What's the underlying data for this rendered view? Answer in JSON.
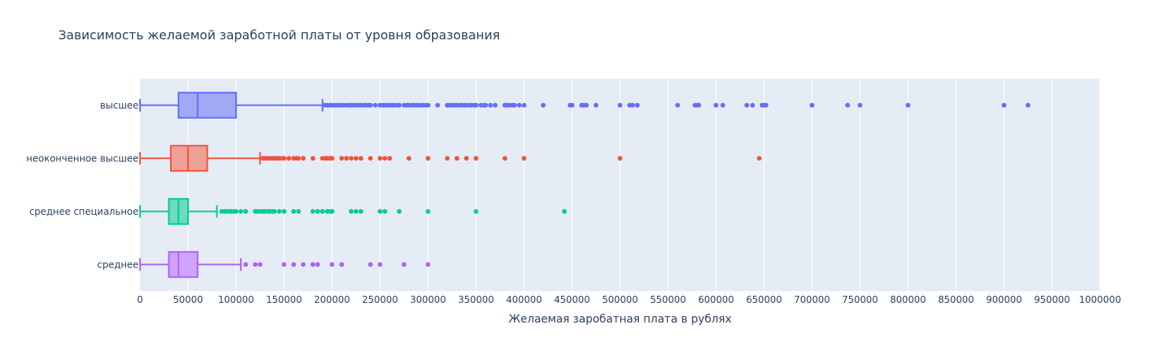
{
  "chart_data": {
    "type": "box",
    "orientation": "horizontal",
    "title": "Зависимость желаемой заработной платы от уровня образования",
    "xlabel": "Желаемая заробатная плата в рублях",
    "ylabel": "",
    "xlim": [
      0,
      1000000
    ],
    "x_ticks": [
      0,
      50000,
      100000,
      150000,
      200000,
      250000,
      300000,
      350000,
      400000,
      450000,
      500000,
      550000,
      600000,
      650000,
      700000,
      750000,
      800000,
      850000,
      900000,
      950000,
      1000000
    ],
    "x_tick_labels": [
      "0",
      "50000",
      "100000",
      "150000",
      "200000",
      "250000",
      "300000",
      "350000",
      "400000",
      "450000",
      "500000",
      "550000",
      "600000",
      "650000",
      "700000",
      "750000",
      "800000",
      "850000",
      "900000",
      "950000",
      "1000000"
    ],
    "grid": true,
    "legend": "none",
    "background": "#e5ecf6",
    "categories": [
      "высшее",
      "неоконченное высшее",
      "среднее специальное",
      "среднее"
    ],
    "series": [
      {
        "category": "высшее",
        "color": "#636efa",
        "fill": "#a1a8f6",
        "min": 0,
        "q1": 40000,
        "median": 60000,
        "q3": 100000,
        "upper_fence": 190000,
        "outliers": [
          192000,
          195000,
          198000,
          200000,
          203000,
          205000,
          208000,
          210000,
          212000,
          215000,
          218000,
          220000,
          223000,
          225000,
          228000,
          230000,
          233000,
          235000,
          238000,
          240000,
          245000,
          250000,
          253000,
          255000,
          258000,
          260000,
          263000,
          265000,
          268000,
          270000,
          275000,
          278000,
          280000,
          283000,
          285000,
          288000,
          290000,
          293000,
          295000,
          298000,
          300000,
          310000,
          320000,
          322000,
          325000,
          328000,
          330000,
          333000,
          335000,
          338000,
          340000,
          343000,
          345000,
          348000,
          350000,
          355000,
          358000,
          360000,
          365000,
          370000,
          380000,
          382000,
          385000,
          388000,
          390000,
          395000,
          400000,
          420000,
          448000,
          450000,
          460000,
          462000,
          465000,
          475000,
          500000,
          510000,
          513000,
          518000,
          560000,
          578000,
          580000,
          582000,
          600000,
          607000,
          632000,
          638000,
          648000,
          650000,
          652000,
          700000,
          737000,
          750000,
          800000,
          900000,
          925000
        ]
      },
      {
        "category": "неоконченное высшее",
        "color": "#ef553b",
        "fill": "#eda095",
        "min": 0,
        "q1": 32000,
        "median": 50000,
        "q3": 70000,
        "upper_fence": 125000,
        "outliers": [
          128000,
          130000,
          133000,
          135000,
          138000,
          140000,
          143000,
          145000,
          148000,
          150000,
          155000,
          160000,
          163000,
          165000,
          170000,
          180000,
          190000,
          193000,
          195000,
          198000,
          200000,
          210000,
          215000,
          220000,
          225000,
          230000,
          240000,
          250000,
          255000,
          260000,
          280000,
          300000,
          320000,
          330000,
          340000,
          350000,
          380000,
          400000,
          500000,
          645000
        ]
      },
      {
        "category": "среднее специальное",
        "color": "#00cc96",
        "fill": "#6ddbbc",
        "min": 0,
        "q1": 30000,
        "median": 40000,
        "q3": 50000,
        "upper_fence": 80000,
        "outliers": [
          85000,
          88000,
          90000,
          93000,
          95000,
          98000,
          100000,
          105000,
          110000,
          120000,
          122000,
          125000,
          128000,
          130000,
          133000,
          135000,
          138000,
          140000,
          145000,
          150000,
          160000,
          165000,
          180000,
          185000,
          190000,
          195000,
          198000,
          200000,
          220000,
          225000,
          230000,
          250000,
          255000,
          270000,
          300000,
          350000,
          442000
        ]
      },
      {
        "category": "среднее",
        "color": "#ab63fa",
        "fill": "#cfa4fb",
        "min": 0,
        "q1": 30000,
        "median": 40000,
        "q3": 60000,
        "upper_fence": 105000,
        "outliers": [
          110000,
          120000,
          125000,
          150000,
          160000,
          170000,
          180000,
          185000,
          200000,
          210000,
          240000,
          250000,
          275000,
          300000
        ]
      }
    ]
  }
}
